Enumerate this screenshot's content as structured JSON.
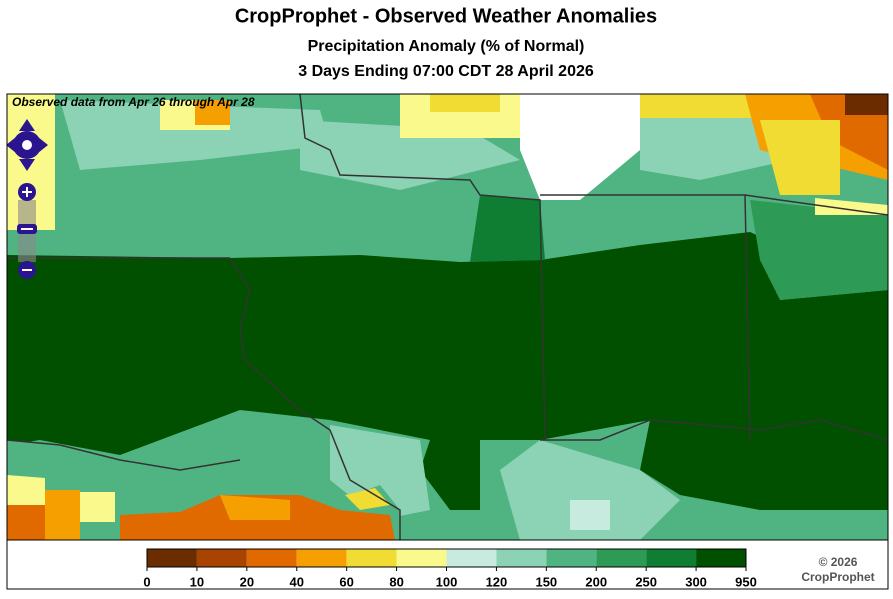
{
  "title": "CropProphet - Observed Weather Anomalies",
  "subtitle": "Precipitation Anomaly (% of Normal)",
  "period": "3 Days Ending 07:00 CDT 28 April 2026",
  "map": {
    "note": "Observed data from Apr 26 through Apr 28"
  },
  "legend": {
    "ticks": [
      0,
      10,
      20,
      40,
      60,
      80,
      100,
      120,
      150,
      200,
      250,
      300,
      950
    ],
    "colors": [
      "#6b2c00",
      "#a84400",
      "#e06a00",
      "#f5a000",
      "#f0dc32",
      "#fafa8c",
      "#c8ebe0",
      "#8cd2b4",
      "#50b482",
      "#2d9b55",
      "#0f7d32",
      "#005000"
    ]
  },
  "credit": {
    "year": "© 2026",
    "brand": "CropProphet"
  }
}
